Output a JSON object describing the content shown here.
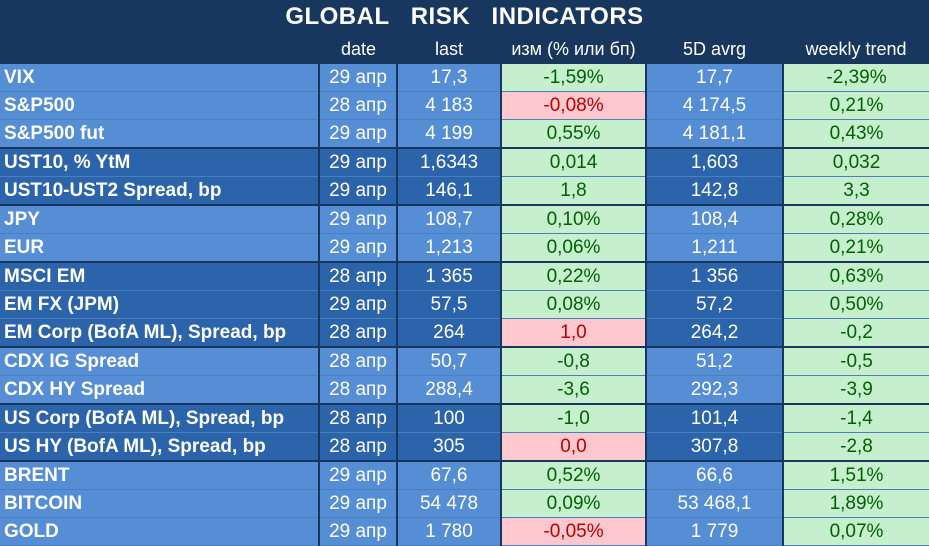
{
  "title": "GLOBAL   RISK   INDICATORS",
  "headers": [
    "",
    "date",
    "last",
    "изм (% или бп)",
    "5D avrg",
    "weekly trend"
  ],
  "rows": [
    {
      "name": "VIX",
      "date": "29 апр",
      "last": "17,3",
      "chg": "-1,59%",
      "chg_status": "pos",
      "avg": "17,7",
      "trend": "-2,39%",
      "trend_status": "pos",
      "group": "light",
      "sep": false
    },
    {
      "name": "S&P500",
      "date": "28 апр",
      "last": "4 183",
      "chg": "-0,08%",
      "chg_status": "neg",
      "avg": "4 174,5",
      "trend": "0,21%",
      "trend_status": "pos",
      "group": "light",
      "sep": false
    },
    {
      "name": "S&P500 fut",
      "date": "29 апр",
      "last": "4 199",
      "chg": "0,55%",
      "chg_status": "pos",
      "avg": "4 181,1",
      "trend": "0,43%",
      "trend_status": "pos",
      "group": "light",
      "sep": false
    },
    {
      "name": "UST10, % YtM",
      "date": "29 апр",
      "last": "1,6343",
      "chg": "0,014",
      "chg_status": "pos",
      "avg": "1,603",
      "trend": "0,032",
      "trend_status": "pos",
      "group": "dark",
      "sep": true
    },
    {
      "name": "UST10-UST2 Spread, bp",
      "date": "29 апр",
      "last": "146,1",
      "chg": "1,8",
      "chg_status": "pos",
      "avg": "142,8",
      "trend": "3,3",
      "trend_status": "pos",
      "group": "dark",
      "sep": false
    },
    {
      "name": "JPY",
      "date": "29 апр",
      "last": "108,7",
      "chg": "0,10%",
      "chg_status": "pos",
      "avg": "108,4",
      "trend": "0,28%",
      "trend_status": "pos",
      "group": "light",
      "sep": true
    },
    {
      "name": "EUR",
      "date": "29 апр",
      "last": "1,213",
      "chg": "0,06%",
      "chg_status": "pos",
      "avg": "1,211",
      "trend": "0,21%",
      "trend_status": "pos",
      "group": "light",
      "sep": false
    },
    {
      "name": "MSCI EM",
      "date": "28 апр",
      "last": "1 365",
      "chg": "0,22%",
      "chg_status": "pos",
      "avg": "1 356",
      "trend": "0,63%",
      "trend_status": "pos",
      "group": "dark",
      "sep": true
    },
    {
      "name": "EM FX (JPM)",
      "date": "29 апр",
      "last": "57,5",
      "chg": "0,08%",
      "chg_status": "pos",
      "avg": "57,2",
      "trend": "0,50%",
      "trend_status": "pos",
      "group": "dark",
      "sep": false
    },
    {
      "name": "EM Corp (BofA ML), Spread, bp",
      "date": "28 апр",
      "last": "264",
      "chg": "1,0",
      "chg_status": "neg",
      "avg": "264,2",
      "trend": "-0,2",
      "trend_status": "pos",
      "group": "dark",
      "sep": false
    },
    {
      "name": "CDX IG Spread",
      "date": "28 апр",
      "last": "50,7",
      "chg": "-0,8",
      "chg_status": "pos",
      "avg": "51,2",
      "trend": "-0,5",
      "trend_status": "pos",
      "group": "light",
      "sep": true
    },
    {
      "name": "CDX HY Spread",
      "date": "28 апр",
      "last": "288,4",
      "chg": "-3,6",
      "chg_status": "pos",
      "avg": "292,3",
      "trend": "-3,9",
      "trend_status": "pos",
      "group": "light",
      "sep": false
    },
    {
      "name": "US Corp (BofA ML), Spread, bp",
      "date": "28 апр",
      "last": "100",
      "chg": "-1,0",
      "chg_status": "pos",
      "avg": "101,4",
      "trend": "-1,4",
      "trend_status": "pos",
      "group": "dark",
      "sep": true
    },
    {
      "name": "US HY (BofA ML), Spread, bp",
      "date": "28 апр",
      "last": "305",
      "chg": "0,0",
      "chg_status": "neg",
      "avg": "307,8",
      "trend": "-2,8",
      "trend_status": "pos",
      "group": "dark",
      "sep": false
    },
    {
      "name": "BRENT",
      "date": "29 апр",
      "last": "67,6",
      "chg": "0,52%",
      "chg_status": "pos",
      "avg": "66,6",
      "trend": "1,51%",
      "trend_status": "pos",
      "group": "light",
      "sep": true
    },
    {
      "name": "BITCOIN",
      "date": "29 апр",
      "last": "54 478",
      "chg": "0,09%",
      "chg_status": "pos",
      "avg": "53 468,1",
      "trend": "1,89%",
      "trend_status": "pos",
      "group": "light",
      "sep": false
    },
    {
      "name": "GOLD",
      "date": "29 апр",
      "last": "1 780",
      "chg": "-0,05%",
      "chg_status": "neg",
      "avg": "1 779",
      "trend": "0,07%",
      "trend_status": "pos",
      "group": "light",
      "sep": false
    }
  ]
}
